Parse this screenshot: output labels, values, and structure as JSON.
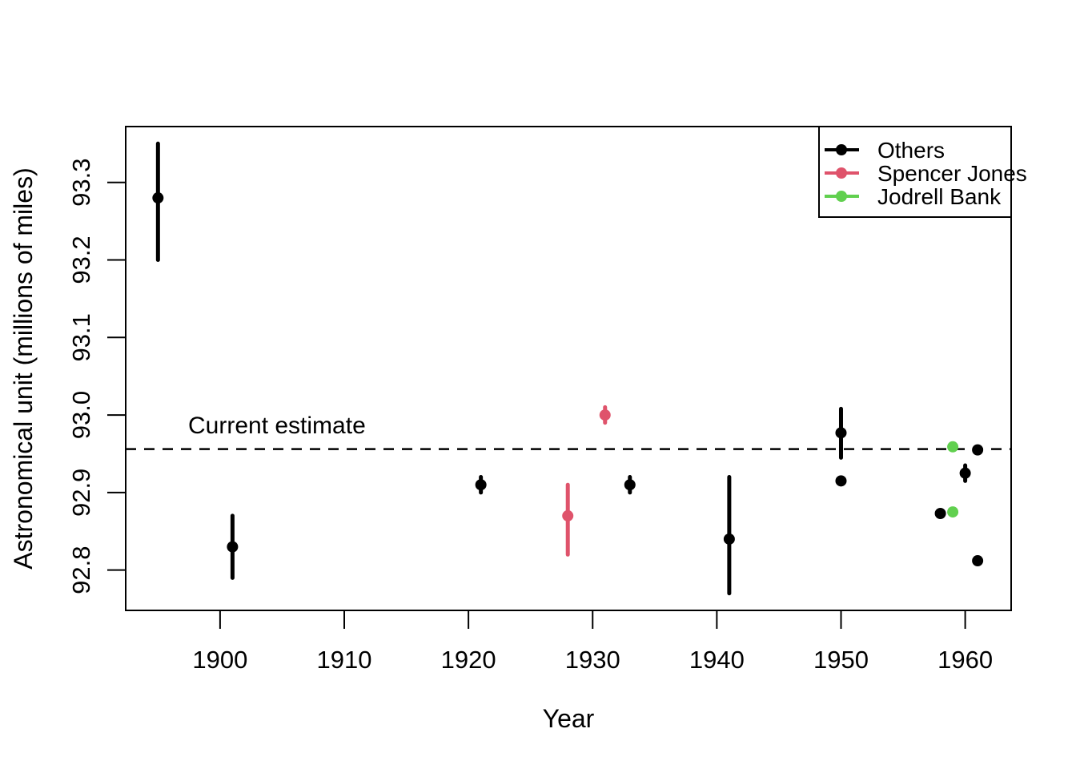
{
  "chart_data": {
    "type": "scatter",
    "title": "",
    "xlabel": "Year",
    "ylabel": "Astronomical unit (millions of miles)",
    "xlim": [
      1892.4,
      1963.7
    ],
    "ylim": [
      92.748,
      93.372
    ],
    "grid": false,
    "x_ticks": [
      {
        "value": 1900,
        "label": "1900"
      },
      {
        "value": 1910,
        "label": "1910"
      },
      {
        "value": 1920,
        "label": "1920"
      },
      {
        "value": 1930,
        "label": "1930"
      },
      {
        "value": 1940,
        "label": "1940"
      },
      {
        "value": 1950,
        "label": "1950"
      },
      {
        "value": 1960,
        "label": "1960"
      }
    ],
    "y_ticks": [
      {
        "value": 92.8,
        "label": "92.8"
      },
      {
        "value": 92.9,
        "label": "92.9"
      },
      {
        "value": 93.0,
        "label": "93.0"
      },
      {
        "value": 93.1,
        "label": "93.1"
      },
      {
        "value": 93.2,
        "label": "93.2"
      },
      {
        "value": 93.3,
        "label": "93.3"
      }
    ],
    "reference_line": {
      "label": "Current estimate",
      "value": 92.956,
      "style": "dashed",
      "color": "#000000"
    },
    "legend": {
      "position": "topright",
      "entries": [
        {
          "label": "Others",
          "color": "#000000"
        },
        {
          "label": "Spencer Jones",
          "color": "#DF536B"
        },
        {
          "label": "Jodrell Bank",
          "color": "#61D04F"
        }
      ]
    },
    "series": [
      {
        "name": "Others",
        "color": "#000000",
        "points": [
          {
            "year": 1895,
            "value": 93.28,
            "low": 93.2,
            "high": 93.35
          },
          {
            "year": 1901,
            "value": 92.83,
            "low": 92.79,
            "high": 92.87
          },
          {
            "year": 1921,
            "value": 92.91,
            "low": 92.9,
            "high": 92.92
          },
          {
            "year": 1933,
            "value": 92.91,
            "low": 92.9,
            "high": 92.92
          },
          {
            "year": 1941,
            "value": 92.84,
            "low": 92.77,
            "high": 92.92
          },
          {
            "year": 1950,
            "value": 92.977,
            "low": 92.945,
            "high": 93.008
          },
          {
            "year": 1950,
            "value": 92.915,
            "low": 92.915,
            "high": 92.915
          },
          {
            "year": 1958,
            "value": 92.873,
            "low": 92.873,
            "high": 92.873
          },
          {
            "year": 1960,
            "value": 92.925,
            "low": 92.915,
            "high": 92.935
          },
          {
            "year": 1961,
            "value": 92.955,
            "low": 92.955,
            "high": 92.955
          },
          {
            "year": 1961,
            "value": 92.812,
            "low": 92.812,
            "high": 92.812
          }
        ]
      },
      {
        "name": "Spencer Jones",
        "color": "#DF536B",
        "points": [
          {
            "year": 1928,
            "value": 92.87,
            "low": 92.82,
            "high": 92.91
          },
          {
            "year": 1931,
            "value": 93.0,
            "low": 92.99,
            "high": 93.01
          }
        ]
      },
      {
        "name": "Jodrell Bank",
        "color": "#61D04F",
        "points": [
          {
            "year": 1959,
            "value": 92.959,
            "low": 92.959,
            "high": 92.959
          },
          {
            "year": 1959,
            "value": 92.875,
            "low": 92.875,
            "high": 92.875
          }
        ]
      }
    ]
  }
}
